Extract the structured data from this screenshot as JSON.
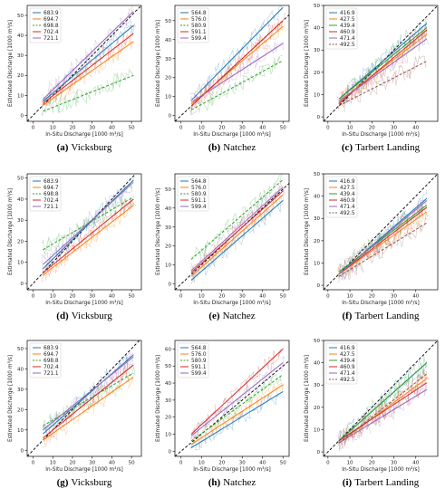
{
  "figure": {
    "colors": {
      "blue": "#1f77b4",
      "orange": "#ff7f0e",
      "green": "#2ca02c",
      "red": "#d62728",
      "purple": "#9467bd",
      "brown": "#8c564b",
      "pink": "#e377c2",
      "gray": "#7f7f7f"
    }
  },
  "chart_data": [
    {
      "id": "a",
      "type": "line",
      "caption_letter": "(a)",
      "caption_text": "Vicksburg",
      "xlabel": "In-Situ Discharge [1000 m³/s]",
      "ylabel": "Estimated Discharge [1000 m³/s]",
      "xlim": [
        -3,
        55
      ],
      "ylim": [
        -3,
        55
      ],
      "xticks": [
        0,
        10,
        20,
        30,
        40,
        50
      ],
      "yticks": [
        0,
        10,
        20,
        30,
        40,
        50
      ],
      "legend_position": "top-left",
      "grid": false,
      "one_to_one_line": true,
      "series": [
        {
          "name": "683.9",
          "color": "#1f77b4",
          "dashed": false,
          "fit_start": [
            5,
            7
          ],
          "fit_end": [
            51,
            45
          ]
        },
        {
          "name": "694.7",
          "color": "#ff7f0e",
          "dashed": false,
          "fit_start": [
            5,
            5
          ],
          "fit_end": [
            51,
            37
          ]
        },
        {
          "name": "698.8",
          "color": "#2ca02c",
          "dashed": true,
          "fit_start": [
            5,
            2
          ],
          "fit_end": [
            51,
            20
          ]
        },
        {
          "name": "702.4",
          "color": "#d62728",
          "dashed": false,
          "fit_start": [
            5,
            6
          ],
          "fit_end": [
            51,
            41
          ]
        },
        {
          "name": "721.1",
          "color": "#9467bd",
          "dashed": false,
          "fit_start": [
            5,
            8
          ],
          "fit_end": [
            51,
            52
          ]
        }
      ]
    },
    {
      "id": "b",
      "type": "line",
      "caption_letter": "(b)",
      "caption_text": "Natchez",
      "xlabel": "In-Situ Discharge [1000 m³/s]",
      "ylabel": "Estimated Discharge [1000 m³/s]",
      "xlim": [
        -3,
        53
      ],
      "ylim": [
        -3,
        58
      ],
      "xticks": [
        0,
        10,
        20,
        30,
        40,
        50
      ],
      "yticks": [
        0,
        10,
        20,
        30,
        40,
        50
      ],
      "legend_position": "top-left",
      "grid": false,
      "one_to_one_line": true,
      "series": [
        {
          "name": "564.8",
          "color": "#1f77b4",
          "dashed": false,
          "fit_start": [
            5,
            8
          ],
          "fit_end": [
            50,
            57
          ]
        },
        {
          "name": "576.0",
          "color": "#ff7f0e",
          "dashed": false,
          "fit_start": [
            5,
            6
          ],
          "fit_end": [
            50,
            47
          ]
        },
        {
          "name": "580.9",
          "color": "#2ca02c",
          "dashed": true,
          "fit_start": [
            5,
            3
          ],
          "fit_end": [
            50,
            29
          ]
        },
        {
          "name": "591.1",
          "color": "#d62728",
          "dashed": false,
          "fit_start": [
            5,
            5
          ],
          "fit_end": [
            50,
            50
          ]
        },
        {
          "name": "599.4",
          "color": "#9467bd",
          "dashed": false,
          "fit_start": [
            5,
            7
          ],
          "fit_end": [
            50,
            38
          ]
        }
      ]
    },
    {
      "id": "c",
      "type": "line",
      "caption_letter": "(c)",
      "caption_text": "Tarbert Landing",
      "xlabel": "In-Situ Discharge [1000 m³/s]",
      "ylabel": "Estimated Discharge [1000 m³/s]",
      "xlim": [
        -2,
        50
      ],
      "ylim": [
        -2,
        50
      ],
      "xticks": [
        0,
        10,
        20,
        30,
        40
      ],
      "yticks": [
        0,
        10,
        20,
        30,
        40,
        50
      ],
      "legend_position": "top-left",
      "grid": false,
      "one_to_one_line": true,
      "series": [
        {
          "name": "416.9",
          "color": "#1f77b4",
          "dashed": false,
          "fit_start": [
            5,
            8
          ],
          "fit_end": [
            45,
            42
          ]
        },
        {
          "name": "427.5",
          "color": "#ff7f0e",
          "dashed": false,
          "fit_start": [
            5,
            7
          ],
          "fit_end": [
            45,
            37
          ]
        },
        {
          "name": "439.4",
          "color": "#2ca02c",
          "dashed": false,
          "fit_start": [
            5,
            8
          ],
          "fit_end": [
            45,
            40
          ]
        },
        {
          "name": "460.9",
          "color": "#d62728",
          "dashed": false,
          "fit_start": [
            5,
            6
          ],
          "fit_end": [
            45,
            39
          ]
        },
        {
          "name": "471.4",
          "color": "#9467bd",
          "dashed": false,
          "fit_start": [
            5,
            7
          ],
          "fit_end": [
            45,
            35
          ]
        },
        {
          "name": "492.5",
          "color": "#8c564b",
          "dashed": true,
          "fit_start": [
            5,
            5
          ],
          "fit_end": [
            45,
            25
          ]
        }
      ]
    },
    {
      "id": "d",
      "type": "line",
      "caption_letter": "(d)",
      "caption_text": "Vicksburg",
      "xlabel": "In-Situ Discharge [1000 m³/s]",
      "ylabel": "Estimated Discharge [1000 m³/s]",
      "xlim": [
        -3,
        55
      ],
      "ylim": [
        -3,
        52
      ],
      "xticks": [
        0,
        10,
        20,
        30,
        40,
        50
      ],
      "yticks": [
        0,
        10,
        20,
        30,
        40,
        50
      ],
      "legend_position": "top-left",
      "grid": false,
      "one_to_one_line": true,
      "series": [
        {
          "name": "683.9",
          "color": "#1f77b4",
          "dashed": false,
          "fit_start": [
            5,
            7
          ],
          "fit_end": [
            51,
            49
          ]
        },
        {
          "name": "694.7",
          "color": "#ff7f0e",
          "dashed": false,
          "fit_start": [
            5,
            4
          ],
          "fit_end": [
            51,
            37
          ]
        },
        {
          "name": "698.8",
          "color": "#2ca02c",
          "dashed": true,
          "fit_start": [
            5,
            16
          ],
          "fit_end": [
            51,
            41
          ]
        },
        {
          "name": "702.4",
          "color": "#d62728",
          "dashed": false,
          "fit_start": [
            5,
            5
          ],
          "fit_end": [
            51,
            40
          ]
        },
        {
          "name": "721.1",
          "color": "#9467bd",
          "dashed": false,
          "fit_start": [
            5,
            9
          ],
          "fit_end": [
            51,
            48
          ]
        }
      ]
    },
    {
      "id": "e",
      "type": "line",
      "caption_letter": "(e)",
      "caption_text": "Natchez",
      "xlabel": "In-Situ Discharge [1000 m³/s]",
      "ylabel": "Estimated Discharge [1000 m³/s]",
      "xlim": [
        -3,
        53
      ],
      "ylim": [
        -3,
        58
      ],
      "xticks": [
        0,
        10,
        20,
        30,
        40,
        50
      ],
      "yticks": [
        0,
        10,
        20,
        30,
        40,
        50
      ],
      "legend_position": "top-left",
      "grid": false,
      "one_to_one_line": true,
      "series": [
        {
          "name": "564.8",
          "color": "#1f77b4",
          "dashed": false,
          "fit_start": [
            5,
            2
          ],
          "fit_end": [
            50,
            44
          ]
        },
        {
          "name": "576.0",
          "color": "#ff7f0e",
          "dashed": false,
          "fit_start": [
            5,
            4
          ],
          "fit_end": [
            50,
            47
          ]
        },
        {
          "name": "580.9",
          "color": "#2ca02c",
          "dashed": true,
          "fit_start": [
            5,
            13
          ],
          "fit_end": [
            50,
            55
          ]
        },
        {
          "name": "591.1",
          "color": "#d62728",
          "dashed": false,
          "fit_start": [
            5,
            6
          ],
          "fit_end": [
            50,
            49
          ]
        },
        {
          "name": "599.4",
          "color": "#9467bd",
          "dashed": false,
          "fit_start": [
            5,
            7
          ],
          "fit_end": [
            50,
            51
          ]
        }
      ]
    },
    {
      "id": "f",
      "type": "line",
      "caption_letter": "(f)",
      "caption_text": "Tarbert Landing",
      "xlabel": "In-Situ Discharge [1000 m³/s]",
      "ylabel": "Estimated Discharge [1000 m³/s]",
      "xlim": [
        -2,
        50
      ],
      "ylim": [
        -2,
        50
      ],
      "xticks": [
        0,
        10,
        20,
        30,
        40
      ],
      "yticks": [
        0,
        10,
        20,
        30,
        40,
        50
      ],
      "legend_position": "top-left",
      "grid": false,
      "one_to_one_line": true,
      "series": [
        {
          "name": "416.9",
          "color": "#1f77b4",
          "dashed": false,
          "fit_start": [
            5,
            5
          ],
          "fit_end": [
            45,
            39
          ]
        },
        {
          "name": "427.5",
          "color": "#ff7f0e",
          "dashed": false,
          "fit_start": [
            5,
            5
          ],
          "fit_end": [
            45,
            33
          ]
        },
        {
          "name": "439.4",
          "color": "#2ca02c",
          "dashed": false,
          "fit_start": [
            5,
            6
          ],
          "fit_end": [
            45,
            36
          ]
        },
        {
          "name": "460.9",
          "color": "#d62728",
          "dashed": false,
          "fit_start": [
            5,
            5
          ],
          "fit_end": [
            45,
            35
          ]
        },
        {
          "name": "471.4",
          "color": "#9467bd",
          "dashed": false,
          "fit_start": [
            5,
            5
          ],
          "fit_end": [
            45,
            38
          ]
        },
        {
          "name": "492.5",
          "color": "#8c564b",
          "dashed": true,
          "fit_start": [
            5,
            4
          ],
          "fit_end": [
            45,
            28
          ]
        }
      ]
    },
    {
      "id": "g",
      "type": "line",
      "caption_letter": "(g)",
      "caption_text": "Vicksburg",
      "xlabel": "In-Situ Discharge [1000 m³/s]",
      "ylabel": "Estimated Discharge [1000 m³/s]",
      "xlim": [
        -3,
        55
      ],
      "ylim": [
        -3,
        54
      ],
      "xticks": [
        0,
        10,
        20,
        30,
        40,
        50
      ],
      "yticks": [
        0,
        10,
        20,
        30,
        40,
        50
      ],
      "legend_position": "top-left",
      "grid": false,
      "one_to_one_line": true,
      "series": [
        {
          "name": "683.9",
          "color": "#1f77b4",
          "dashed": false,
          "fit_start": [
            5,
            8
          ],
          "fit_end": [
            51,
            47
          ]
        },
        {
          "name": "694.7",
          "color": "#ff7f0e",
          "dashed": false,
          "fit_start": [
            5,
            5
          ],
          "fit_end": [
            51,
            36
          ]
        },
        {
          "name": "698.8",
          "color": "#2ca02c",
          "dashed": true,
          "fit_start": [
            5,
            12
          ],
          "fit_end": [
            51,
            38
          ]
        },
        {
          "name": "702.4",
          "color": "#d62728",
          "dashed": false,
          "fit_start": [
            5,
            6
          ],
          "fit_end": [
            51,
            42
          ]
        },
        {
          "name": "721.1",
          "color": "#9467bd",
          "dashed": false,
          "fit_start": [
            5,
            10
          ],
          "fit_end": [
            51,
            46
          ]
        }
      ]
    },
    {
      "id": "h",
      "type": "line",
      "caption_letter": "(h)",
      "caption_text": "Natchez",
      "xlabel": "In-Situ Discharge [1000 m³/s]",
      "ylabel": "Estimated Discharge [1000 m³/s]",
      "xlim": [
        -3,
        53
      ],
      "ylim": [
        -3,
        65
      ],
      "xticks": [
        0,
        10,
        20,
        30,
        40,
        50
      ],
      "yticks": [
        0,
        10,
        20,
        30,
        40,
        50,
        60
      ],
      "legend_position": "top-left",
      "grid": false,
      "one_to_one_line": true,
      "series": [
        {
          "name": "564.8",
          "color": "#1f77b4",
          "dashed": false,
          "fit_start": [
            5,
            2
          ],
          "fit_end": [
            50,
            35
          ]
        },
        {
          "name": "576.0",
          "color": "#ff7f0e",
          "dashed": false,
          "fit_start": [
            5,
            4
          ],
          "fit_end": [
            50,
            39
          ]
        },
        {
          "name": "580.9",
          "color": "#2ca02c",
          "dashed": true,
          "fit_start": [
            5,
            6
          ],
          "fit_end": [
            50,
            45
          ]
        },
        {
          "name": "591.1",
          "color": "#d62728",
          "dashed": false,
          "fit_start": [
            5,
            10
          ],
          "fit_end": [
            50,
            60
          ]
        },
        {
          "name": "599.4",
          "color": "#9467bd",
          "dashed": false,
          "fit_start": [
            5,
            9
          ],
          "fit_end": [
            50,
            52
          ]
        }
      ]
    },
    {
      "id": "i",
      "type": "line",
      "caption_letter": "(i)",
      "caption_text": "Tarbert Landing",
      "xlabel": "In-Situ Discharge [1000 m³/s]",
      "ylabel": "Estimated Discharge [1000 m³/s]",
      "xlim": [
        -2,
        50
      ],
      "ylim": [
        -2,
        50
      ],
      "xticks": [
        0,
        10,
        20,
        30,
        40
      ],
      "yticks": [
        0,
        10,
        20,
        30,
        40,
        50
      ],
      "legend_position": "top-left",
      "grid": false,
      "one_to_one_line": true,
      "series": [
        {
          "name": "416.9",
          "color": "#1f77b4",
          "dashed": false,
          "fit_start": [
            5,
            5
          ],
          "fit_end": [
            45,
            40
          ]
        },
        {
          "name": "427.5",
          "color": "#ff7f0e",
          "dashed": false,
          "fit_start": [
            5,
            4
          ],
          "fit_end": [
            45,
            33
          ]
        },
        {
          "name": "439.4",
          "color": "#2ca02c",
          "dashed": false,
          "fit_start": [
            5,
            5
          ],
          "fit_end": [
            45,
            40
          ]
        },
        {
          "name": "460.9",
          "color": "#d62728",
          "dashed": false,
          "fit_start": [
            5,
            5
          ],
          "fit_end": [
            45,
            31
          ]
        },
        {
          "name": "471.4",
          "color": "#9467bd",
          "dashed": false,
          "fit_start": [
            5,
            4
          ],
          "fit_end": [
            45,
            28
          ]
        },
        {
          "name": "492.5",
          "color": "#8c564b",
          "dashed": true,
          "fit_start": [
            5,
            4
          ],
          "fit_end": [
            45,
            35
          ]
        }
      ]
    }
  ]
}
